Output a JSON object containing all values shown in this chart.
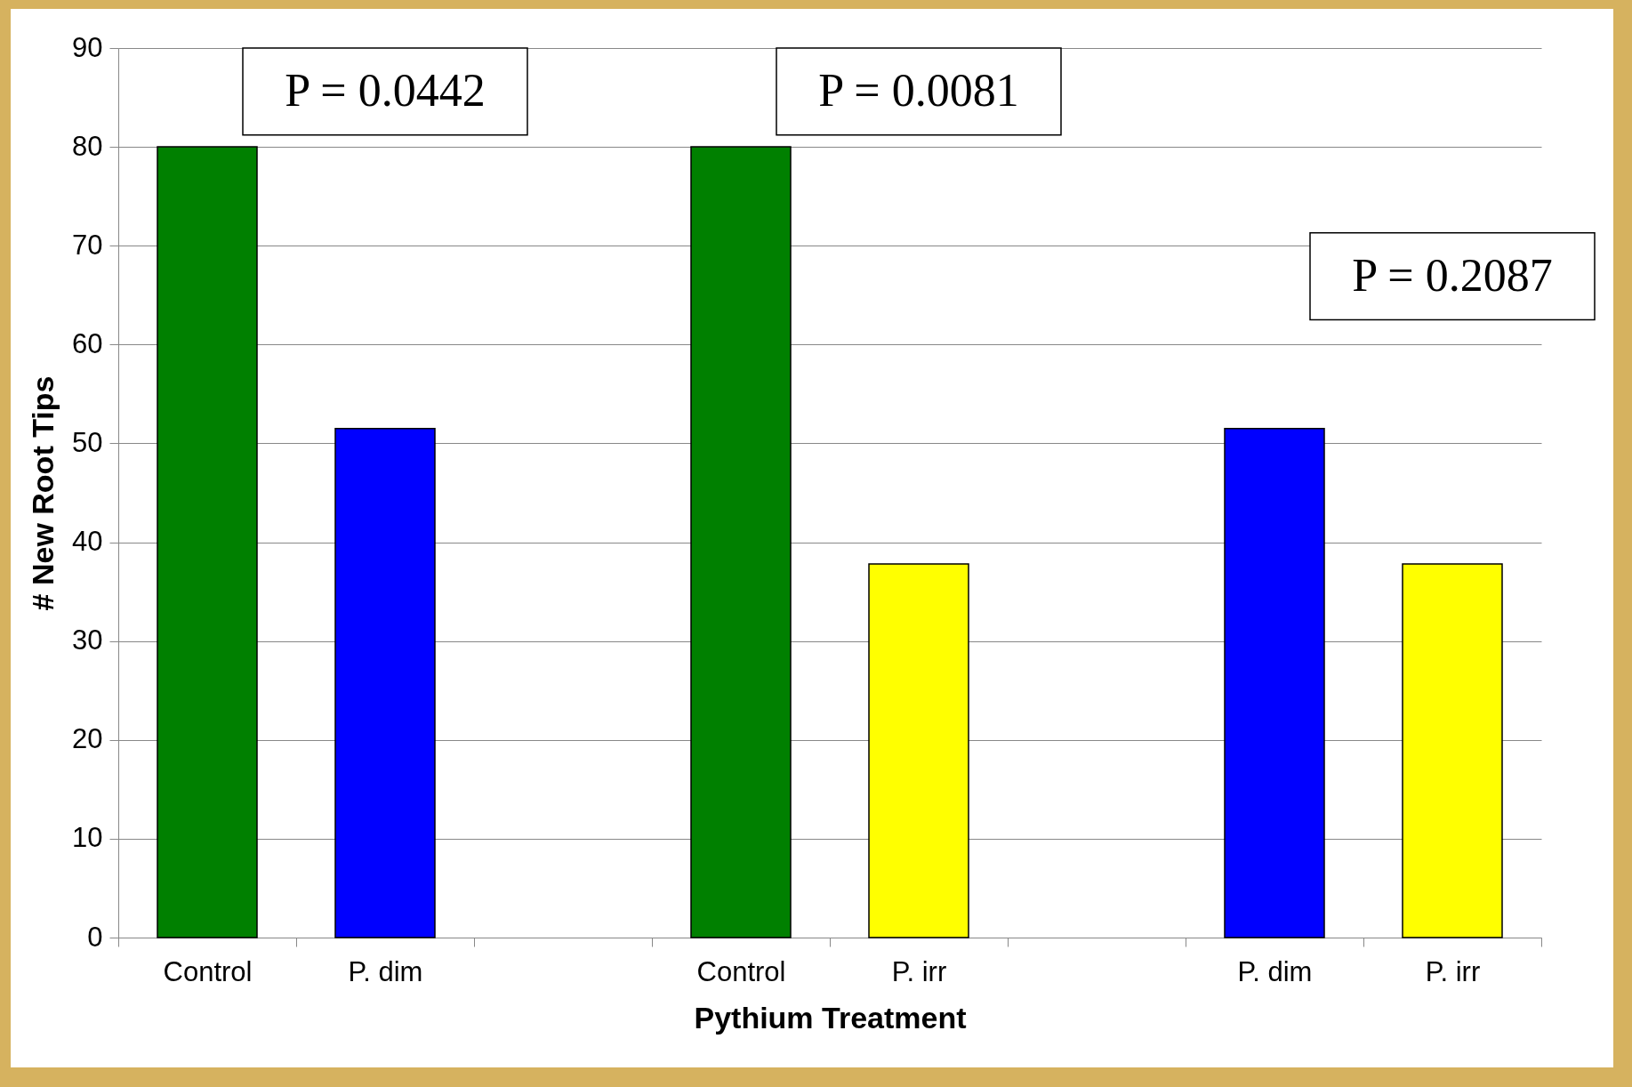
{
  "chart_data": {
    "type": "bar",
    "xlabel": "Pythium Treatment",
    "ylabel": "# New Root Tips",
    "categories": [
      "Control",
      "P. dim",
      null,
      "Control",
      "P. irr",
      null,
      "P. dim",
      "P. irr"
    ],
    "values": [
      80,
      51.5,
      null,
      80,
      37.8,
      null,
      51.5,
      37.8
    ],
    "colors": [
      "#008000",
      "#0000ff",
      null,
      "#008000",
      "#ffff00",
      null,
      "#0000ff",
      "#ffff00"
    ],
    "ylim": [
      0,
      90
    ],
    "yticks": [
      0,
      10,
      20,
      30,
      40,
      50,
      60,
      70,
      80,
      90
    ],
    "grid": "y",
    "annotations": [
      "P = 0.0442",
      "P = 0.0081",
      "P = 0.2087"
    ]
  }
}
